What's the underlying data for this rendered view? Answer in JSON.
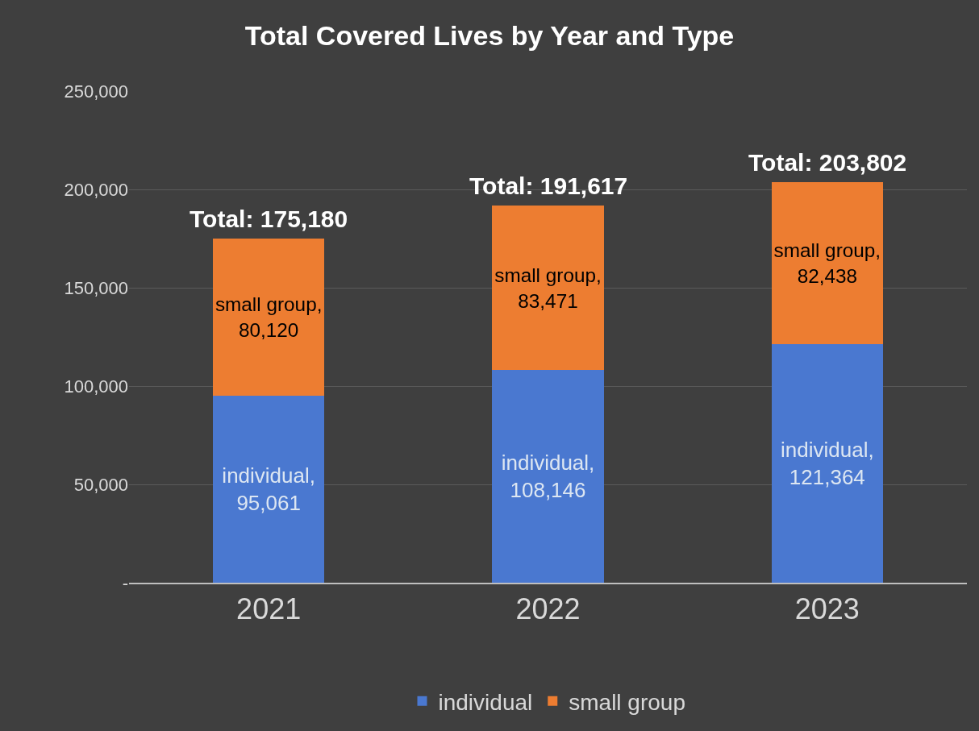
{
  "chart_data": {
    "type": "bar",
    "title": "Total Covered Lives by Year and Type",
    "categories": [
      "2021",
      "2022",
      "2023"
    ],
    "stacked": true,
    "series": [
      {
        "name": "individual",
        "color": "#4a78d0",
        "values": [
          95061,
          108146,
          121364
        ],
        "value_labels": [
          "individual, 95,061",
          "individual, 108,146",
          "individual, 121,364"
        ]
      },
      {
        "name": "small group",
        "color": "#ed7d31",
        "values": [
          80120,
          83471,
          82438
        ],
        "value_labels": [
          "small group, 80,120",
          "small group, 83,471",
          "small group, 82,438"
        ]
      }
    ],
    "totals": [
      "Total: 175,180",
      "Total: 191,617",
      "Total: 203,802"
    ],
    "ylim": [
      0,
      250000
    ],
    "yticks": [
      {
        "value": 0,
        "label": "-"
      },
      {
        "value": 50000,
        "label": "50,000"
      },
      {
        "value": 100000,
        "label": "100,000"
      },
      {
        "value": 150000,
        "label": "150,000"
      },
      {
        "value": 200000,
        "label": "200,000"
      },
      {
        "value": 250000,
        "label": "250,000"
      }
    ],
    "grid": "y",
    "legend": "bottom"
  }
}
